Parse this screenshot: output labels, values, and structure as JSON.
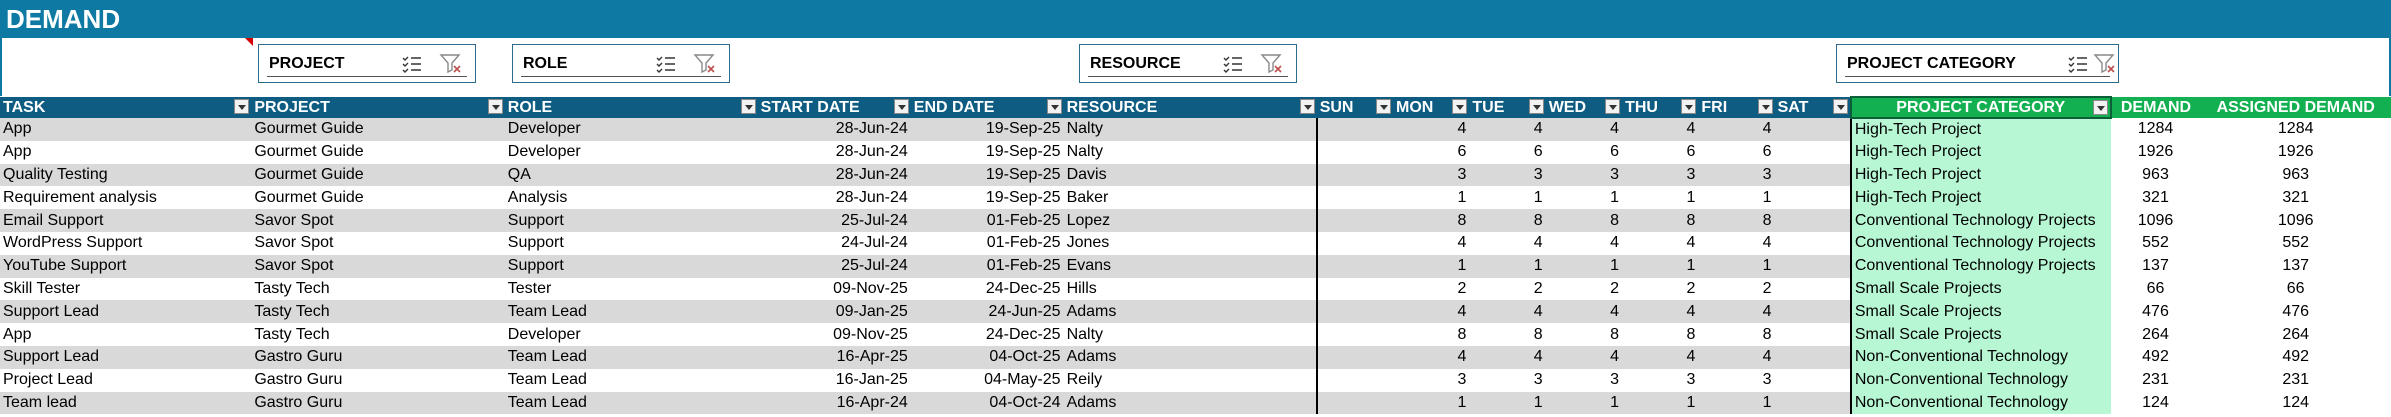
{
  "title": "DEMAND",
  "slicers": [
    {
      "label": "PROJECT"
    },
    {
      "label": "ROLE"
    },
    {
      "label": "RESOURCE"
    },
    {
      "label": "PROJECT CATEGORY"
    }
  ],
  "columns": [
    "TASK",
    "PROJECT",
    "ROLE",
    "START DATE",
    "END DATE",
    "RESOURCE",
    "SUN",
    "MON",
    "TUE",
    "WED",
    "THU",
    "FRI",
    "SAT",
    "PROJECT CATEGORY",
    "DEMAND",
    "ASSIGNED DEMAND"
  ],
  "rows": [
    [
      "App",
      "Gourmet Guide",
      "Developer",
      "28-Jun-24",
      "19-Sep-25",
      "Nalty",
      "",
      "4",
      "4",
      "4",
      "4",
      "4",
      "",
      "High-Tech Project",
      "1284",
      "1284"
    ],
    [
      "App",
      "Gourmet Guide",
      "Developer",
      "28-Jun-24",
      "19-Sep-25",
      "Nalty",
      "",
      "6",
      "6",
      "6",
      "6",
      "6",
      "",
      "High-Tech Project",
      "1926",
      "1926"
    ],
    [
      "Quality Testing",
      "Gourmet Guide",
      "QA",
      "28-Jun-24",
      "19-Sep-25",
      "Davis",
      "",
      "3",
      "3",
      "3",
      "3",
      "3",
      "",
      "High-Tech Project",
      "963",
      "963"
    ],
    [
      "Requirement analysis",
      "Gourmet Guide",
      "Analysis",
      "28-Jun-24",
      "19-Sep-25",
      "Baker",
      "",
      "1",
      "1",
      "1",
      "1",
      "1",
      "",
      "High-Tech Project",
      "321",
      "321"
    ],
    [
      "Email Support",
      "Savor Spot",
      "Support",
      "25-Jul-24",
      "01-Feb-25",
      "Lopez",
      "",
      "8",
      "8",
      "8",
      "8",
      "8",
      "",
      "Conventional Technology Projects",
      "1096",
      "1096"
    ],
    [
      "WordPress Support",
      "Savor Spot",
      "Support",
      "24-Jul-24",
      "01-Feb-25",
      "Jones",
      "",
      "4",
      "4",
      "4",
      "4",
      "4",
      "",
      "Conventional Technology Projects",
      "552",
      "552"
    ],
    [
      "YouTube Support",
      "Savor Spot",
      "Support",
      "25-Jul-24",
      "01-Feb-25",
      "Evans",
      "",
      "1",
      "1",
      "1",
      "1",
      "1",
      "",
      "Conventional Technology Projects",
      "137",
      "137"
    ],
    [
      "Skill Tester",
      "Tasty Tech",
      "Tester",
      "09-Nov-25",
      "24-Dec-25",
      "Hills",
      "",
      "2",
      "2",
      "2",
      "2",
      "2",
      "",
      "Small Scale Projects",
      "66",
      "66"
    ],
    [
      "Support Lead",
      "Tasty Tech",
      "Team Lead",
      "09-Jan-25",
      "24-Jun-25",
      "Adams",
      "",
      "4",
      "4",
      "4",
      "4",
      "4",
      "",
      "Small Scale Projects",
      "476",
      "476"
    ],
    [
      "App",
      "Tasty Tech",
      "Developer",
      "09-Nov-25",
      "24-Dec-25",
      "Nalty",
      "",
      "8",
      "8",
      "8",
      "8",
      "8",
      "",
      "Small Scale Projects",
      "264",
      "264"
    ],
    [
      "Support Lead",
      "Gastro Guru",
      "Team Lead",
      "16-Apr-25",
      "04-Oct-25",
      "Adams",
      "",
      "4",
      "4",
      "4",
      "4",
      "4",
      "",
      "Non-Conventional Technology",
      "492",
      "492"
    ],
    [
      "Project Lead",
      "Gastro Guru",
      "Team Lead",
      "16-Jan-25",
      "04-May-25",
      "Reily",
      "",
      "3",
      "3",
      "3",
      "3",
      "3",
      "",
      "Non-Conventional Technology",
      "231",
      "231"
    ],
    [
      "Team lead",
      "Gastro Guru",
      "Team Lead",
      "16-Apr-24",
      "04-Oct-24",
      "Adams",
      "",
      "1",
      "1",
      "1",
      "1",
      "1",
      "",
      "Non-Conventional Technology",
      "124",
      "124"
    ]
  ]
}
